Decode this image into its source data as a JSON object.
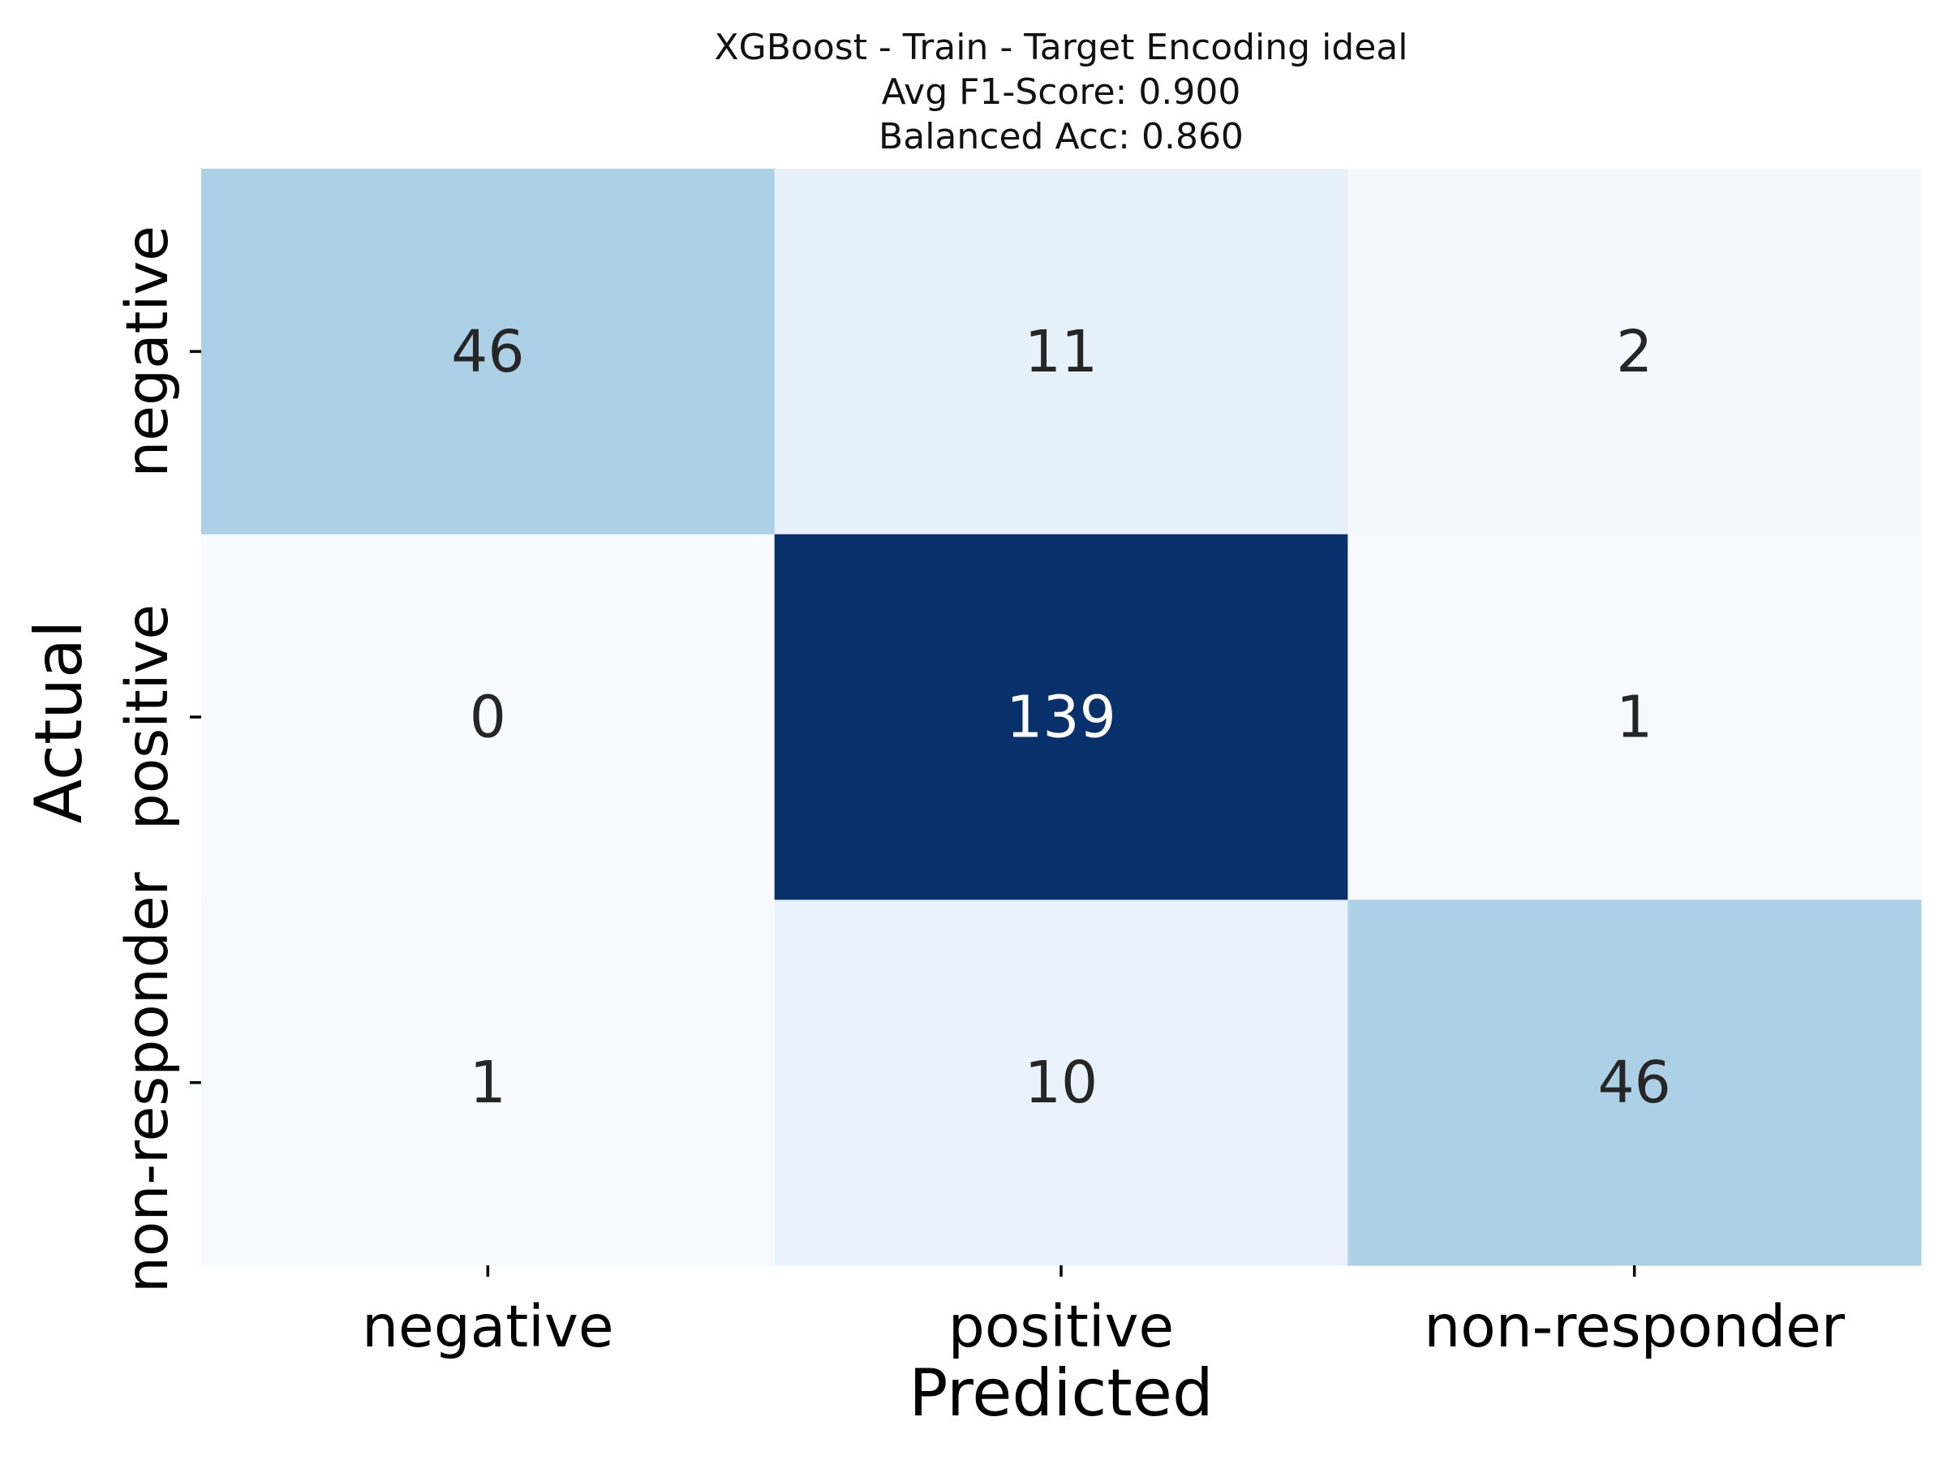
{
  "chart_data": {
    "type": "heatmap",
    "title_lines": [
      "XGBoost - Train - Target Encoding ideal",
      "Avg F1-Score: 0.900",
      "Balanced Acc: 0.860"
    ],
    "xlabel": "Predicted",
    "ylabel": "Actual",
    "x_categories": [
      "negative",
      "positive",
      "non-responder"
    ],
    "y_categories": [
      "negative",
      "positive",
      "non-responder"
    ],
    "matrix": [
      [
        46,
        11,
        2
      ],
      [
        0,
        139,
        1
      ],
      [
        1,
        10,
        46
      ]
    ],
    "colormap": "Blues",
    "colorbar": false,
    "colors": {
      "low": "#f7fbff",
      "high": "#08306b",
      "text_dark": "#262626",
      "text_light": "#ffffff"
    }
  }
}
